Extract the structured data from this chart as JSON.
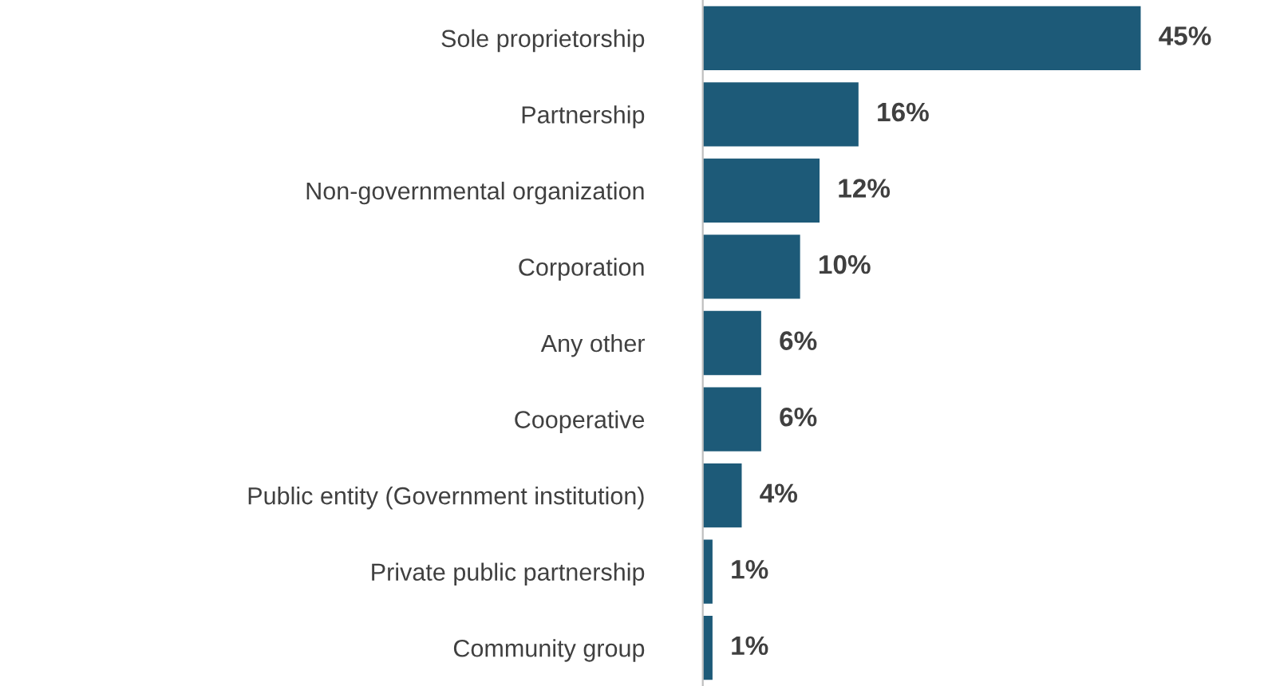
{
  "chart_data": {
    "type": "bar",
    "orientation": "horizontal",
    "categories": [
      "Sole proprietorship",
      "Partnership",
      "Non-governmental organization",
      "Corporation",
      "Any other",
      "Cooperative",
      "Public entity (Government institution)",
      "Private public partnership",
      "Community group"
    ],
    "values": [
      45,
      16,
      12,
      10,
      6,
      6,
      4,
      1,
      1
    ],
    "value_labels": [
      "45%",
      "16%",
      "12%",
      "10%",
      "6%",
      "6%",
      "4%",
      "1%",
      "1%"
    ],
    "color": "#1d5a78",
    "tick_labels": "y",
    "grid": false,
    "legend": false
  }
}
